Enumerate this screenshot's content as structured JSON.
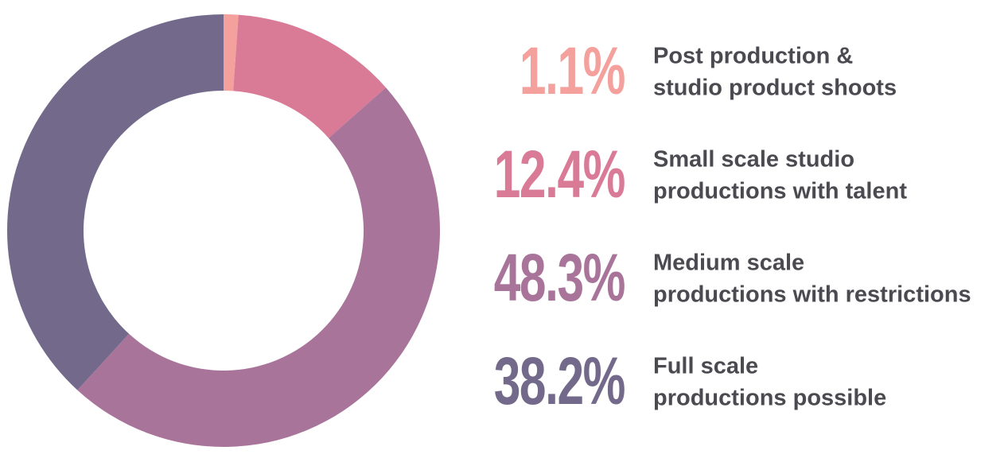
{
  "chart_data": {
    "type": "donut",
    "categories": [
      [
        "Post production &",
        "studio product shoots"
      ],
      [
        "Small scale studio",
        "productions with talent"
      ],
      [
        "Medium scale",
        "productions with restrictions"
      ],
      [
        "Full scale",
        "productions possible"
      ]
    ],
    "values": [
      1.1,
      12.4,
      48.3,
      38.2
    ],
    "value_labels": [
      "1.1%",
      "12.4%",
      "48.3%",
      "38.2%"
    ],
    "colors": [
      "#f4a09c",
      "#d97b97",
      "#a97499",
      "#736a8b"
    ]
  }
}
